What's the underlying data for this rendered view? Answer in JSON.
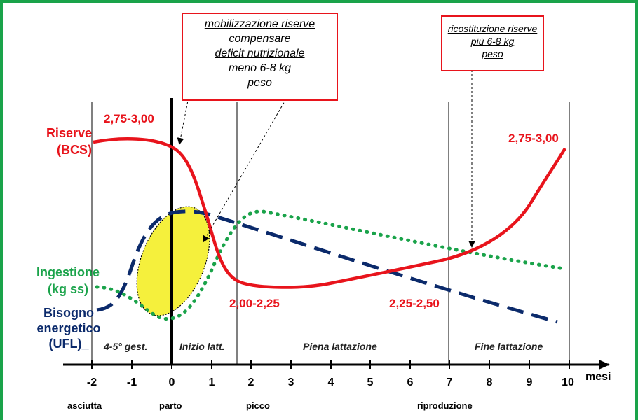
{
  "callouts": {
    "left": {
      "lines": [
        "mobilizzazione riserve",
        "compensare",
        "deficit nutrizionale",
        "meno 6-8 kg",
        "peso"
      ]
    },
    "right": {
      "lines": [
        "ricostituzione riserve",
        "più 6-8 kg",
        "peso"
      ]
    }
  },
  "labels": {
    "riserve_line1": "Riserve",
    "riserve_line2": "(BCS)",
    "ingestione_line1": "Ingestione",
    "ingestione_line2": "(kg ss)",
    "bisogno_line1": "Bisogno",
    "bisogno_line2": "energetico",
    "bisogno_line3": "(UFL)",
    "bisogno_line3_suffix": "_"
  },
  "values": {
    "bcs_start": "2,75-3,00",
    "bcs_end": "2,75-3,00",
    "bcs_low": "2,00-2,25",
    "bcs_mid": "2,25-2,50"
  },
  "phases": {
    "dry": "4-5° gest.",
    "early": "Inizio latt.",
    "full": "Piena lattazione",
    "late": "Fine lattazione"
  },
  "axis": {
    "unit": "mesi",
    "ticks": [
      "-2",
      "-1",
      "0",
      "1",
      "2",
      "3",
      "4",
      "5",
      "6",
      "7",
      "8",
      "9",
      "10"
    ]
  },
  "events": {
    "asciutta": "asciutta",
    "parto": "parto",
    "picco": "picco",
    "riproduzione": "riproduzione"
  },
  "colors": {
    "riserve": "#e8141c",
    "ingestione": "#1aa34a",
    "bisogno": "#0b2a6b",
    "highlight": "#f5f03c",
    "frame": "#1aa34a"
  }
}
